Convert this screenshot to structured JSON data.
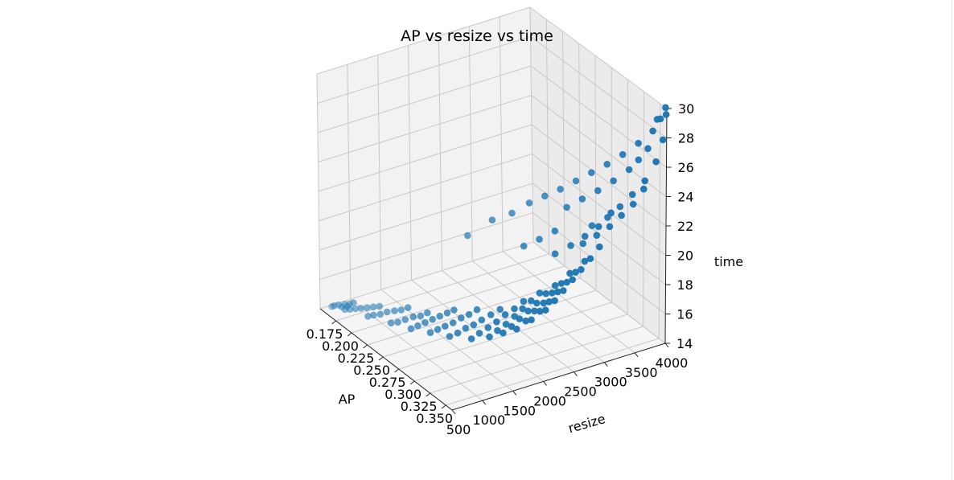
{
  "chart_data": {
    "type": "scatter",
    "projection": "3d",
    "title": "AP vs resize vs time",
    "xlabel": "AP",
    "ylabel": "resize",
    "zlabel": "time",
    "xlim": [
      0.15,
      0.36
    ],
    "ylim": [
      500,
      4000
    ],
    "zlim": [
      14,
      30
    ],
    "xticks": [
      "0.175",
      "0.200",
      "0.225",
      "0.250",
      "0.275",
      "0.300",
      "0.325",
      "0.350"
    ],
    "yticks": [
      "500",
      "1000",
      "1500",
      "2000",
      "2500",
      "3000",
      "3500",
      "4000"
    ],
    "zticks": [
      "14",
      "16",
      "18",
      "20",
      "22",
      "24",
      "26",
      "28",
      "30"
    ],
    "grid": true,
    "color": "#1f77b4",
    "points": [
      [
        0.163,
        560,
        14.5
      ],
      [
        0.165,
        580,
        14.6
      ],
      [
        0.168,
        620,
        14.7
      ],
      [
        0.17,
        650,
        14.6
      ],
      [
        0.172,
        680,
        14.8
      ],
      [
        0.174,
        700,
        14.7
      ],
      [
        0.176,
        720,
        14.9
      ],
      [
        0.178,
        760,
        15.0
      ],
      [
        0.18,
        600,
        14.8
      ],
      [
        0.184,
        640,
        14.9
      ],
      [
        0.188,
        690,
        15.0
      ],
      [
        0.192,
        740,
        15.1
      ],
      [
        0.196,
        800,
        15.2
      ],
      [
        0.2,
        860,
        15.3
      ],
      [
        0.204,
        920,
        15.4
      ],
      [
        0.207,
        700,
        15.1
      ],
      [
        0.21,
        760,
        15.2
      ],
      [
        0.214,
        830,
        15.3
      ],
      [
        0.218,
        900,
        15.5
      ],
      [
        0.222,
        980,
        15.6
      ],
      [
        0.226,
        1050,
        15.7
      ],
      [
        0.23,
        1120,
        15.9
      ],
      [
        0.234,
        800,
        15.4
      ],
      [
        0.238,
        870,
        15.5
      ],
      [
        0.242,
        950,
        15.7
      ],
      [
        0.246,
        1040,
        15.9
      ],
      [
        0.25,
        1120,
        16.0
      ],
      [
        0.253,
        1200,
        16.2
      ],
      [
        0.256,
        900,
        15.6
      ],
      [
        0.259,
        980,
        15.8
      ],
      [
        0.262,
        1070,
        16.0
      ],
      [
        0.265,
        1160,
        16.2
      ],
      [
        0.268,
        1250,
        16.4
      ],
      [
        0.271,
        1340,
        16.6
      ],
      [
        0.274,
        1420,
        16.8
      ],
      [
        0.277,
        1000,
        15.9
      ],
      [
        0.28,
        1090,
        16.1
      ],
      [
        0.283,
        1180,
        16.3
      ],
      [
        0.286,
        1280,
        16.5
      ],
      [
        0.289,
        1380,
        16.8
      ],
      [
        0.292,
        1480,
        17.0
      ],
      [
        0.295,
        1580,
        17.3
      ],
      [
        0.298,
        1100,
        16.2
      ],
      [
        0.301,
        1200,
        16.4
      ],
      [
        0.304,
        1300,
        16.7
      ],
      [
        0.307,
        1400,
        16.9
      ],
      [
        0.31,
        1500,
        17.2
      ],
      [
        0.313,
        1620,
        17.5
      ],
      [
        0.316,
        1740,
        17.8
      ],
      [
        0.318,
        1250,
        16.5
      ],
      [
        0.32,
        1360,
        16.8
      ],
      [
        0.322,
        1480,
        17.1
      ],
      [
        0.324,
        1600,
        17.4
      ],
      [
        0.326,
        1720,
        17.8
      ],
      [
        0.328,
        1850,
        18.1
      ],
      [
        0.33,
        1980,
        18.5
      ],
      [
        0.332,
        1400,
        16.9
      ],
      [
        0.333,
        1520,
        17.2
      ],
      [
        0.334,
        1650,
        17.5
      ],
      [
        0.335,
        1780,
        17.9
      ],
      [
        0.336,
        1900,
        18.3
      ],
      [
        0.337,
        2030,
        18.7
      ],
      [
        0.338,
        2160,
        19.1
      ],
      [
        0.339,
        1550,
        17.2
      ],
      [
        0.34,
        1680,
        17.5
      ],
      [
        0.341,
        1800,
        17.9
      ],
      [
        0.342,
        1930,
        18.3
      ],
      [
        0.343,
        2060,
        18.7
      ],
      [
        0.344,
        2200,
        19.2
      ],
      [
        0.345,
        2340,
        19.6
      ],
      [
        0.346,
        1700,
        17.5
      ],
      [
        0.347,
        1840,
        17.9
      ],
      [
        0.347,
        1980,
        18.4
      ],
      [
        0.348,
        2120,
        18.8
      ],
      [
        0.348,
        2260,
        19.3
      ],
      [
        0.349,
        2400,
        19.8
      ],
      [
        0.349,
        2540,
        20.3
      ],
      [
        0.35,
        1900,
        18.0
      ],
      [
        0.35,
        2040,
        18.4
      ],
      [
        0.351,
        2180,
        18.9
      ],
      [
        0.351,
        2320,
        19.4
      ],
      [
        0.352,
        2460,
        19.9
      ],
      [
        0.352,
        2600,
        20.4
      ],
      [
        0.353,
        2740,
        21.0
      ],
      [
        0.353,
        2100,
        18.5
      ],
      [
        0.354,
        2240,
        19.0
      ],
      [
        0.354,
        2380,
        19.5
      ],
      [
        0.355,
        2520,
        20.1
      ],
      [
        0.355,
        2660,
        20.6
      ],
      [
        0.356,
        2800,
        21.2
      ],
      [
        0.356,
        2950,
        21.8
      ],
      [
        0.24,
        2000,
        20.0
      ],
      [
        0.25,
        2300,
        21.0
      ],
      [
        0.262,
        2500,
        21.6
      ],
      [
        0.27,
        2700,
        22.3
      ],
      [
        0.28,
        2850,
        22.9
      ],
      [
        0.29,
        3000,
        23.5
      ],
      [
        0.3,
        3150,
        24.2
      ],
      [
        0.31,
        3300,
        24.9
      ],
      [
        0.32,
        3450,
        25.6
      ],
      [
        0.33,
        3600,
        26.4
      ],
      [
        0.34,
        3750,
        27.3
      ],
      [
        0.35,
        3880,
        28.3
      ],
      [
        0.355,
        3950,
        29.2
      ],
      [
        0.3,
        3000,
        22.6
      ],
      [
        0.31,
        3150,
        23.3
      ],
      [
        0.32,
        3300,
        24.0
      ],
      [
        0.33,
        3450,
        24.8
      ],
      [
        0.34,
        3600,
        25.7
      ],
      [
        0.345,
        3700,
        26.4
      ],
      [
        0.35,
        3800,
        27.2
      ],
      [
        0.33,
        3100,
        22.2
      ],
      [
        0.34,
        3250,
        22.9
      ],
      [
        0.345,
        3400,
        23.6
      ],
      [
        0.35,
        3550,
        24.4
      ],
      [
        0.355,
        3700,
        25.3
      ],
      [
        0.358,
        3850,
        26.5
      ],
      [
        0.359,
        3950,
        27.9
      ],
      [
        0.36,
        3990,
        29.6
      ],
      [
        0.335,
        2900,
        21.4
      ],
      [
        0.342,
        3050,
        22.0
      ],
      [
        0.348,
        3200,
        22.6
      ],
      [
        0.352,
        3350,
        23.3
      ],
      [
        0.356,
        3500,
        24.0
      ],
      [
        0.358,
        3650,
        24.9
      ],
      [
        0.32,
        2600,
        20.6
      ],
      [
        0.33,
        2750,
        21.3
      ],
      [
        0.338,
        2900,
        22.0
      ],
      [
        0.345,
        3050,
        22.7
      ],
      [
        0.35,
        3200,
        23.6
      ],
      [
        0.29,
        2400,
        20.4
      ],
      [
        0.3,
        2550,
        21.0
      ],
      [
        0.31,
        2700,
        21.7
      ],
      [
        0.35,
        3950,
        29.0
      ],
      [
        0.358,
        4000,
        30.0
      ]
    ]
  }
}
